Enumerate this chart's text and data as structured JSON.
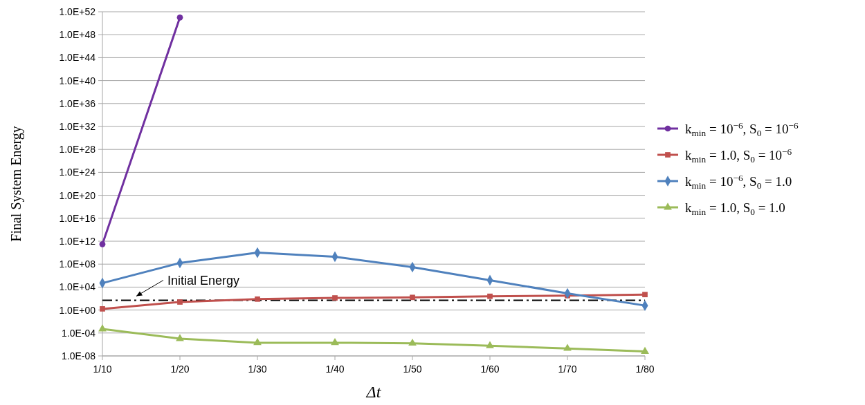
{
  "chart_data": {
    "type": "line",
    "xlabel": "Δt",
    "ylabel": "Final System Energy",
    "categories": [
      "1/10",
      "1/20",
      "1/30",
      "1/40",
      "1/50",
      "1/60",
      "1/70",
      "1/80"
    ],
    "log": true,
    "grid": "y",
    "legend": "right",
    "ylim": [
      1e-08,
      1e+52
    ],
    "yticks": [
      {
        "value": 1e-08,
        "label": "1.0E-08"
      },
      {
        "value": 0.0001,
        "label": "1.0E-04"
      },
      {
        "value": 1,
        "label": "1.0E+00"
      },
      {
        "value": 10000.0,
        "label": "1.0E+04"
      },
      {
        "value": 100000000.0,
        "label": "1.0E+08"
      },
      {
        "value": 1000000000000.0,
        "label": "1.0E+12"
      },
      {
        "value": 1e+16,
        "label": "1.0E+16"
      },
      {
        "value": 1e+20,
        "label": "1.0E+20"
      },
      {
        "value": 1e+24,
        "label": "1.0E+24"
      },
      {
        "value": 1e+28,
        "label": "1.0E+28"
      },
      {
        "value": 1e+32,
        "label": "1.0E+32"
      },
      {
        "value": 1e+36,
        "label": "1.0E+36"
      },
      {
        "value": 1e+40,
        "label": "1.0E+40"
      },
      {
        "value": 1e+44,
        "label": "1.0E+44"
      },
      {
        "value": 1e+48,
        "label": "1.0E+48"
      },
      {
        "value": 1e+52,
        "label": "1.0E+52"
      }
    ],
    "ref_lines": [
      {
        "axis": "y",
        "value": 50,
        "label": "Initial Energy",
        "color": "#000000",
        "line_style": "dashed"
      }
    ],
    "series": [
      {
        "name": "k$_{min}$ = 10$^{−6}$, S$_{0}$ = 10$^{−6}$",
        "color": "#7030a0",
        "marker": "circle",
        "values": [
          300000000000.0,
          1e+51,
          null,
          null,
          null,
          null,
          null,
          null
        ]
      },
      {
        "name": "k$_{min}$ = 1.0, S$_{0}$ = 10$^{−6}$",
        "color": "#c0504d",
        "marker": "square",
        "values": [
          1.6,
          25,
          80,
          130,
          160,
          250,
          320,
          500
        ]
      },
      {
        "name": "k$_{min}$ = 10$^{−6}$, S$_{0}$ = 1.0",
        "color": "#4f81bd",
        "marker": "diamond",
        "values": [
          50000.0,
          160000000.0,
          10000000000.0,
          2000000000.0,
          30000000.0,
          160000.0,
          800,
          6
        ]
      },
      {
        "name": "k$_{min}$ = 1.0, S$_{0}$ = 1.0",
        "color": "#9bbb59",
        "marker": "triangle",
        "values": [
          0.0005,
          1e-05,
          2e-06,
          2e-06,
          1.6e-06,
          6e-07,
          2e-07,
          6e-08
        ]
      }
    ]
  }
}
